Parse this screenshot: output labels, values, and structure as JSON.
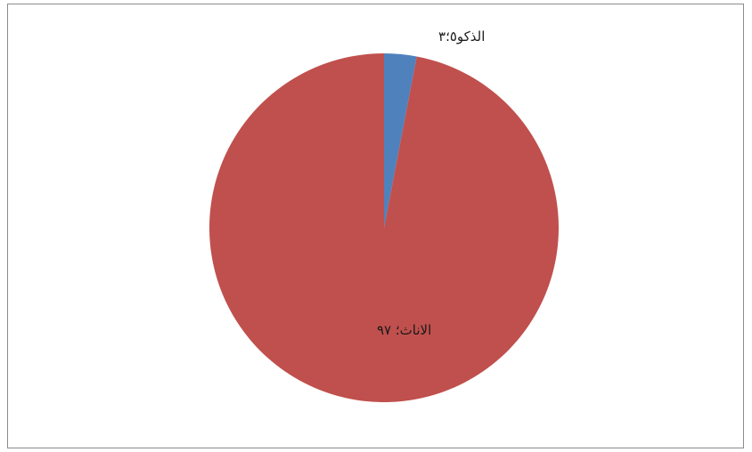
{
  "chart_data": {
    "type": "pie",
    "categories": [
      "الذكور",
      "الاناث"
    ],
    "values": [
      3,
      97
    ],
    "labels": [
      "الذكو٥؛٣",
      "الاناث؛ ٩٧"
    ],
    "colors": [
      "#4f81bd",
      "#c0504d"
    ],
    "title": "",
    "legend": "none"
  }
}
